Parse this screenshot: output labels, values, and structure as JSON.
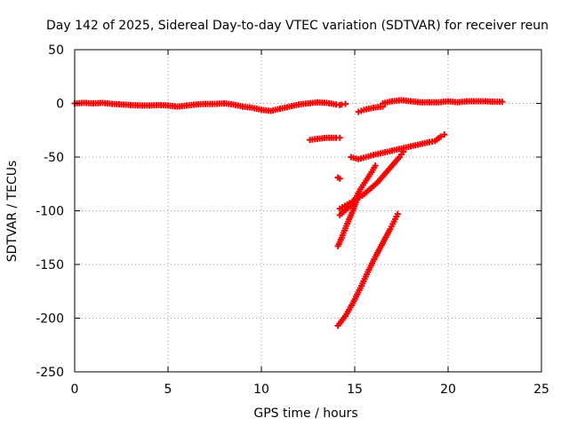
{
  "chart_data": {
    "type": "scatter",
    "title": "Day 142 of 2025, Sidereal Day-to-day VTEC variation (SDTVAR) for receiver reun",
    "xlabel": "GPS time / hours",
    "ylabel": "SDTVAR / TECUs",
    "xlim": [
      0,
      25
    ],
    "ylim": [
      -250,
      50
    ],
    "xticks": [
      "0",
      "5",
      "10",
      "15",
      "20",
      "25"
    ],
    "yticks": [
      "50",
      "0",
      "-50",
      "-100",
      "-150",
      "-200",
      "-250"
    ],
    "grid": true,
    "legend": "none",
    "series": [
      {
        "color": "#ff0000",
        "segments": [
          [
            [
              0,
              0
            ],
            [
              0.5,
              0.5
            ],
            [
              1,
              0
            ],
            [
              1.5,
              0.5
            ],
            [
              2,
              -0.5
            ],
            [
              2.5,
              -1
            ],
            [
              3,
              -1.5
            ],
            [
              3.5,
              -2
            ],
            [
              4,
              -2
            ],
            [
              4.5,
              -1.5
            ],
            [
              5,
              -2
            ],
            [
              5.5,
              -3
            ],
            [
              6,
              -2
            ],
            [
              6.5,
              -1
            ],
            [
              7,
              -0.5
            ],
            [
              7.5,
              -0.5
            ],
            [
              8,
              0
            ],
            [
              8.5,
              -1
            ],
            [
              9,
              -3
            ],
            [
              9.5,
              -4
            ],
            [
              10,
              -6
            ],
            [
              10.5,
              -7
            ],
            [
              11,
              -5
            ],
            [
              11.5,
              -3
            ],
            [
              12,
              -1
            ],
            [
              12.5,
              0
            ],
            [
              13,
              1
            ],
            [
              13.5,
              0.5
            ],
            [
              14,
              -1
            ],
            [
              14.2,
              -1.5
            ]
          ],
          [
            [
              12.6,
              -34
            ],
            [
              13,
              -33
            ],
            [
              13.5,
              -32
            ],
            [
              14,
              -32
            ],
            [
              14.2,
              -32
            ]
          ],
          [
            [
              14.3,
              -1
            ],
            [
              14.5,
              -0.5
            ]
          ],
          [
            [
              15.2,
              -8
            ],
            [
              15.5,
              -6
            ],
            [
              16,
              -4
            ],
            [
              16.5,
              -3
            ]
          ],
          [
            [
              16.5,
              0
            ],
            [
              17,
              2
            ],
            [
              17.5,
              3
            ],
            [
              18,
              2
            ],
            [
              18.5,
              1
            ],
            [
              19,
              1
            ],
            [
              19.5,
              1
            ],
            [
              20,
              2
            ],
            [
              20.5,
              1
            ],
            [
              21,
              2
            ],
            [
              21.5,
              2
            ],
            [
              22,
              2
            ],
            [
              22.5,
              1.5
            ],
            [
              22.9,
              1.5
            ]
          ],
          [
            [
              14.8,
              -50
            ],
            [
              15.2,
              -52
            ],
            [
              15.6,
              -50
            ],
            [
              16,
              -48
            ],
            [
              16.5,
              -46
            ],
            [
              17,
              -44
            ],
            [
              17.5,
              -42
            ],
            [
              18,
              -40
            ],
            [
              18.5,
              -38
            ],
            [
              19,
              -36
            ],
            [
              19.3,
              -35
            ],
            [
              19.6,
              -31
            ],
            [
              19.8,
              -29
            ]
          ],
          [
            [
              14.1,
              -69
            ],
            [
              14.2,
              -70
            ]
          ],
          [
            [
              14.2,
              -98
            ],
            [
              14.6,
              -94
            ],
            [
              15,
              -90
            ],
            [
              15.4,
              -86
            ],
            [
              15.8,
              -80
            ],
            [
              16.2,
              -74
            ],
            [
              16.6,
              -66
            ],
            [
              17,
              -58
            ],
            [
              17.4,
              -50
            ],
            [
              17.6,
              -45
            ]
          ],
          [
            [
              14.2,
              -104
            ],
            [
              14.6,
              -98
            ],
            [
              15,
              -90
            ],
            [
              15.3,
              -80
            ],
            [
              15.6,
              -72
            ],
            [
              15.9,
              -64
            ],
            [
              16.1,
              -58
            ]
          ],
          [
            [
              14.1,
              -133
            ],
            [
              14.3,
              -125
            ],
            [
              14.6,
              -112
            ],
            [
              14.9,
              -100
            ],
            [
              15.1,
              -90
            ]
          ],
          [
            [
              14.1,
              -207
            ],
            [
              14.5,
              -198
            ],
            [
              14.9,
              -186
            ],
            [
              15.3,
              -172
            ],
            [
              15.7,
              -157
            ],
            [
              16.1,
              -143
            ],
            [
              16.5,
              -130
            ],
            [
              16.9,
              -117
            ],
            [
              17.1,
              -110
            ],
            [
              17.3,
              -103
            ]
          ]
        ]
      }
    ]
  }
}
